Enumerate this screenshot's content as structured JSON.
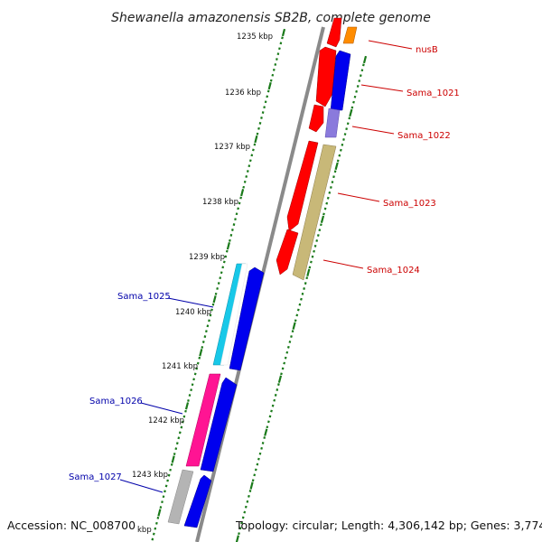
{
  "title": "Shewanella amazonensis SB2B, complete genome",
  "accession": "Accession: NC_008700",
  "topology": "Topology: circular; Length: 4,306,142 bp; Genes: 3,774",
  "kbp_labels": [
    "1235 kbp",
    "1236 kbp",
    "1237 kbp",
    "1238 kbp",
    "1239 kbp",
    "1240 kbp",
    "1241 kbp",
    "1242 kbp",
    "1243 kbp",
    "kbp"
  ],
  "gene_labels_forward": [
    "nusB",
    "Sama_1021",
    "Sama_1022",
    "Sama_1023",
    "Sama_1024"
  ],
  "gene_labels_reverse": [
    "Sama_1025",
    "Sama_1026",
    "Sama_1027"
  ],
  "colors": {
    "forward_label": "#cc0000",
    "reverse_label": "#0000aa",
    "backbone": "#8a8a8a",
    "tick": "#1a7a1a",
    "red_gene": "#ff0000",
    "blue_gene": "#0000ee",
    "orange_gene": "#ff8c00",
    "olive_gene": "#c8b878",
    "lavender_gene": "#8a7adc",
    "cyan_gene": "#18c8e8",
    "magenta_gene": "#ff1493",
    "gray_gene": "#b4b4b4"
  }
}
